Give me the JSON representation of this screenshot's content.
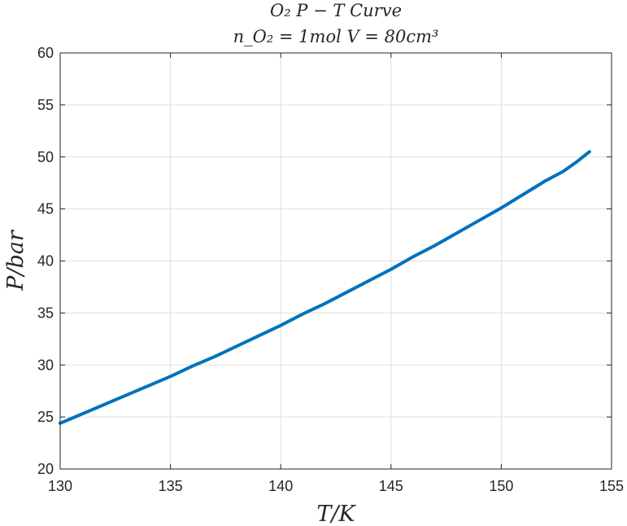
{
  "chart_data": {
    "type": "line",
    "title_line1": "O₂   P − T   Curve",
    "title_line2": "n_O₂ = 1mol   V = 80cm³",
    "xlabel": "T/K",
    "ylabel": "P/bar",
    "xlim": [
      130,
      155
    ],
    "ylim": [
      20,
      60
    ],
    "xticks": [
      130,
      135,
      140,
      145,
      150,
      155
    ],
    "yticks": [
      20,
      25,
      30,
      35,
      40,
      45,
      50,
      55,
      60
    ],
    "grid": true,
    "line_color": "#0072BD",
    "series": [
      {
        "x": [
          130,
          131,
          132,
          133,
          134,
          135,
          136,
          137,
          138,
          139,
          140,
          141,
          142,
          143,
          144,
          145,
          146,
          147,
          148,
          149,
          150,
          151,
          152,
          152.8,
          153.4,
          154
        ],
        "y": [
          24.4,
          25.3,
          26.2,
          27.1,
          28.0,
          28.9,
          29.9,
          30.8,
          31.8,
          32.8,
          33.8,
          34.9,
          35.9,
          37.0,
          38.1,
          39.2,
          40.4,
          41.5,
          42.7,
          43.9,
          45.1,
          46.4,
          47.7,
          48.6,
          49.5,
          50.5
        ]
      }
    ]
  }
}
